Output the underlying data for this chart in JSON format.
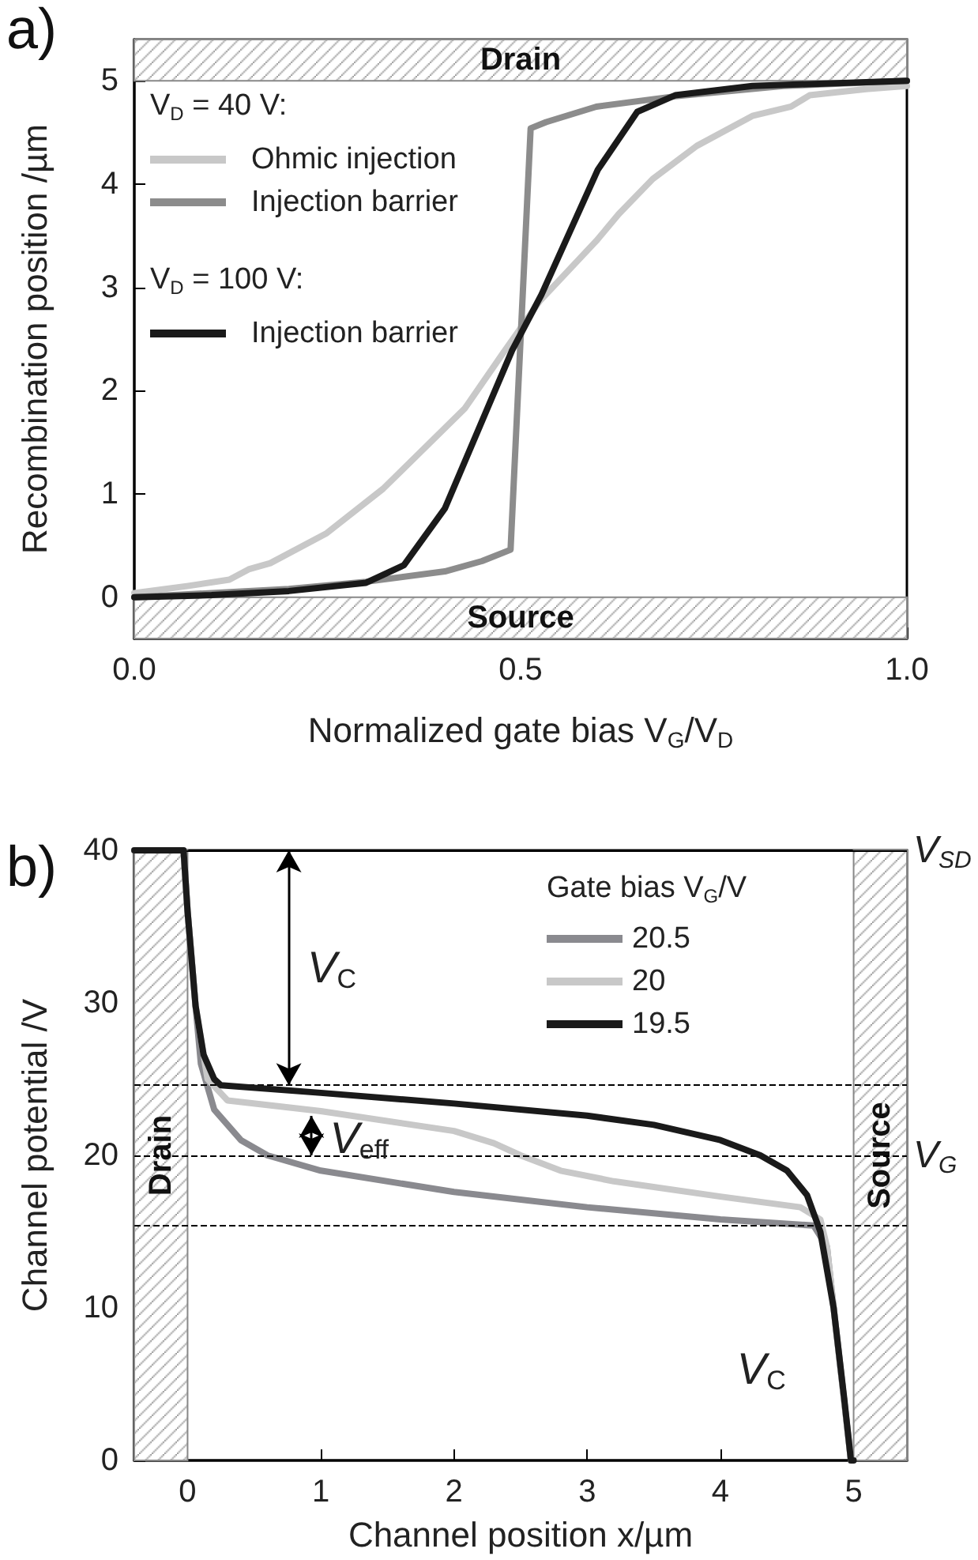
{
  "chart_data": [
    {
      "type": "line",
      "title": "a)",
      "xlabel": "Normalized gate bias V$_{G}$/V$_{D}$",
      "ylabel": "Recombination position /µm",
      "xlim": [
        0,
        1
      ],
      "xticks": [
        {
          "value": 0,
          "label": "0.0"
        },
        {
          "value": 0.5,
          "label": "0.5"
        },
        {
          "value": 1,
          "label": "1.0"
        }
      ],
      "ylim": [
        -0.4,
        5.4
      ],
      "yticks": [
        0,
        1,
        2,
        3,
        4,
        5
      ],
      "series": [
        {
          "name": "Ohmic injection",
          "color": "#c8c8c8",
          "x": [
            0,
            0.07,
            0.123,
            0.148,
            0.176,
            0.249,
            0.322,
            0.428,
            0.476,
            0.525,
            0.598,
            0.627,
            0.671,
            0.728,
            0.8,
            0.85,
            0.874,
            0.947,
            1.0
          ],
          "values": [
            0.04,
            0.11,
            0.17,
            0.27,
            0.33,
            0.62,
            1.05,
            1.83,
            2.35,
            2.87,
            3.45,
            3.71,
            4.05,
            4.37,
            4.66,
            4.75,
            4.86,
            4.92,
            4.95
          ]
        },
        {
          "name": "Injection barrier",
          "color": "#8c8c8c",
          "x": [
            0,
            0.2,
            0.3,
            0.402,
            0.45,
            0.487,
            0.513,
            0.533,
            0.598,
            0.7,
            0.84,
            1.0
          ],
          "values": [
            0,
            0.08,
            0.15,
            0.25,
            0.35,
            0.46,
            4.54,
            4.6,
            4.75,
            4.85,
            4.95,
            5.0
          ]
        },
        {
          "name": "Injection barrier",
          "color": "#1a1a1a",
          "x": [
            0,
            0.1,
            0.2,
            0.3,
            0.349,
            0.402,
            0.489,
            0.527,
            0.6,
            0.651,
            0.7,
            0.8,
            1.0
          ],
          "values": [
            0,
            0.02,
            0.06,
            0.14,
            0.31,
            0.86,
            2.39,
            2.93,
            4.14,
            4.7,
            4.86,
            4.95,
            5.0
          ]
        }
      ],
      "bands": [
        {
          "axis": "y",
          "from": 5,
          "to": 5.4,
          "label": "Drain"
        },
        {
          "axis": "y",
          "from": -0.4,
          "to": 0,
          "label": "Source"
        }
      ],
      "annotations": [
        "V$_{D}$ = 40 V:",
        "V$_{D}$ = 100 V:"
      ],
      "legend": "top left",
      "marker": "none",
      "line_style": "solid",
      "grid": false
    },
    {
      "type": "line",
      "title": "b)",
      "xlabel": "Channel position x/µm",
      "ylabel": "Channel potential /V",
      "legend_title": "Gate bias V$_{G}$/V",
      "xlim": [
        -0.4,
        5.4
      ],
      "xticks": [
        0,
        1,
        2,
        3,
        4,
        5
      ],
      "ylim": [
        0,
        40
      ],
      "yticks": [
        0,
        10,
        20,
        30,
        40
      ],
      "series": [
        {
          "name": "20.5",
          "color": "#8a8a8f",
          "x": [
            -0.4,
            -0.03,
            0,
            0.06,
            0.1,
            0.2,
            0.4,
            0.6,
            1,
            2,
            3,
            4,
            4.7,
            4.8,
            4.85,
            4.98
          ],
          "values": [
            40,
            40,
            36,
            29.8,
            26,
            23,
            21,
            20,
            19,
            17.6,
            16.6,
            15.8,
            15.4,
            14,
            10,
            0
          ]
        },
        {
          "name": "20",
          "color": "#c8c8c8",
          "x": [
            -0.4,
            -0.03,
            0,
            0.06,
            0.15,
            0.3,
            1,
            2,
            2.3,
            2.5,
            2.8,
            3.2,
            4,
            4.6,
            4.75,
            4.8,
            4.85,
            4.98
          ],
          "values": [
            40,
            40,
            36,
            29.8,
            25,
            23.6,
            22.9,
            21.6,
            20.8,
            20,
            19,
            18.3,
            17.3,
            16.6,
            15.8,
            14,
            10,
            0
          ]
        },
        {
          "name": "19.5",
          "color": "#1a1a1a",
          "x": [
            -0.4,
            -0.03,
            0,
            0.06,
            0.12,
            0.2,
            0.25,
            1,
            2,
            3,
            3.5,
            4,
            4.3,
            4.5,
            4.65,
            4.75,
            4.85,
            4.93,
            4.98,
            5.0
          ],
          "values": [
            40,
            40,
            36,
            29.8,
            26.6,
            25,
            24.6,
            24.1,
            23.4,
            22.6,
            22,
            21,
            20,
            19,
            17.4,
            15,
            10,
            4,
            0,
            0
          ]
        }
      ],
      "bands": [
        {
          "axis": "x",
          "from": -0.4,
          "to": 0,
          "label": "Drain"
        },
        {
          "axis": "x",
          "from": 5,
          "to": 5.4,
          "label": "Source"
        }
      ],
      "ref_lines": [
        {
          "axis": "y",
          "value": 24.6,
          "line_style": "dashed"
        },
        {
          "axis": "y",
          "value": 20,
          "label": "V$_{G}$",
          "line_style": "dashed"
        },
        {
          "axis": "y",
          "value": 15.4,
          "line_style": "dashed"
        },
        {
          "axis": "y",
          "value": 40,
          "label": "V$_{SD}$",
          "line_style": "solid"
        }
      ],
      "annotations": [
        {
          "text": "V$_{C}$",
          "x": 0.76,
          "y": 24.6
        },
        {
          "text": "V$_{eff}$",
          "x": 0.93,
          "y": 20
        },
        {
          "text": "V$_{C}$",
          "x": 4.54,
          "y": 15.4
        }
      ],
      "legend": "top right",
      "marker": "none",
      "line_style": "solid",
      "grid": false
    }
  ]
}
